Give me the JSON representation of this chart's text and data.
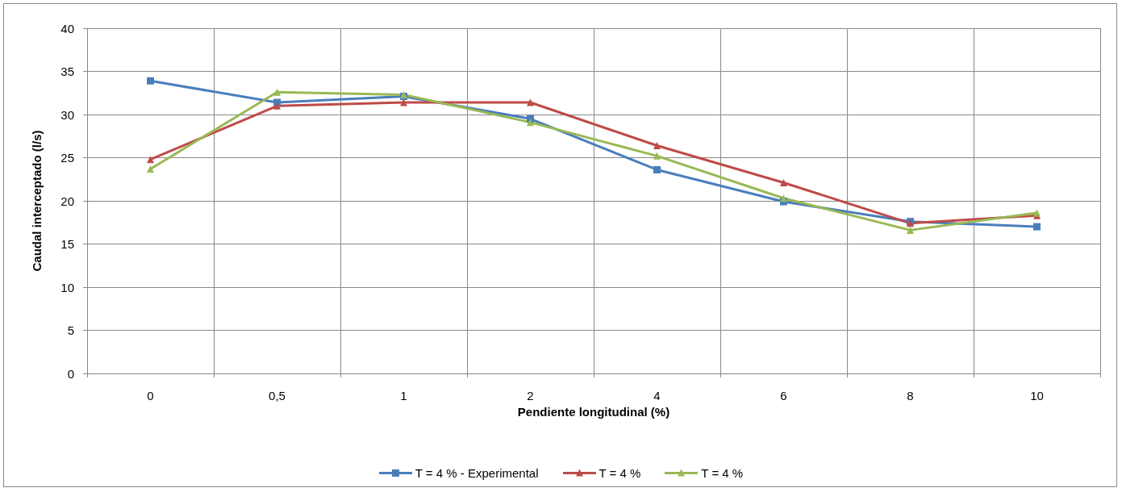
{
  "chart_data": {
    "type": "line",
    "xlabel": "Pendiente longitudinal (%)",
    "ylabel": "Caudal interceptado (l/s)",
    "categories": [
      "0",
      "0,5",
      "1",
      "2",
      "4",
      "6",
      "8",
      "10"
    ],
    "series": [
      {
        "name": "T = 4 % - Experimental",
        "color": "#4a7ebb",
        "marker": "square",
        "values": [
          33.9,
          31.4,
          32.1,
          29.5,
          23.6,
          19.9,
          17.6,
          17.0
        ]
      },
      {
        "name": "T = 4 %",
        "color": "#be4b48",
        "marker": "triangle",
        "values": [
          24.8,
          31.0,
          31.4,
          31.4,
          26.4,
          22.1,
          17.4,
          18.3
        ]
      },
      {
        "name": "T = 4 %",
        "color": "#98b954",
        "marker": "triangle",
        "values": [
          23.7,
          32.6,
          32.3,
          29.1,
          25.2,
          20.3,
          16.6,
          18.6
        ]
      }
    ],
    "ylim": [
      0,
      40
    ],
    "yticks": [
      0,
      5,
      10,
      15,
      20,
      25,
      30,
      35,
      40
    ],
    "grid": true,
    "legend": "bottom",
    "line_style": "solid"
  }
}
